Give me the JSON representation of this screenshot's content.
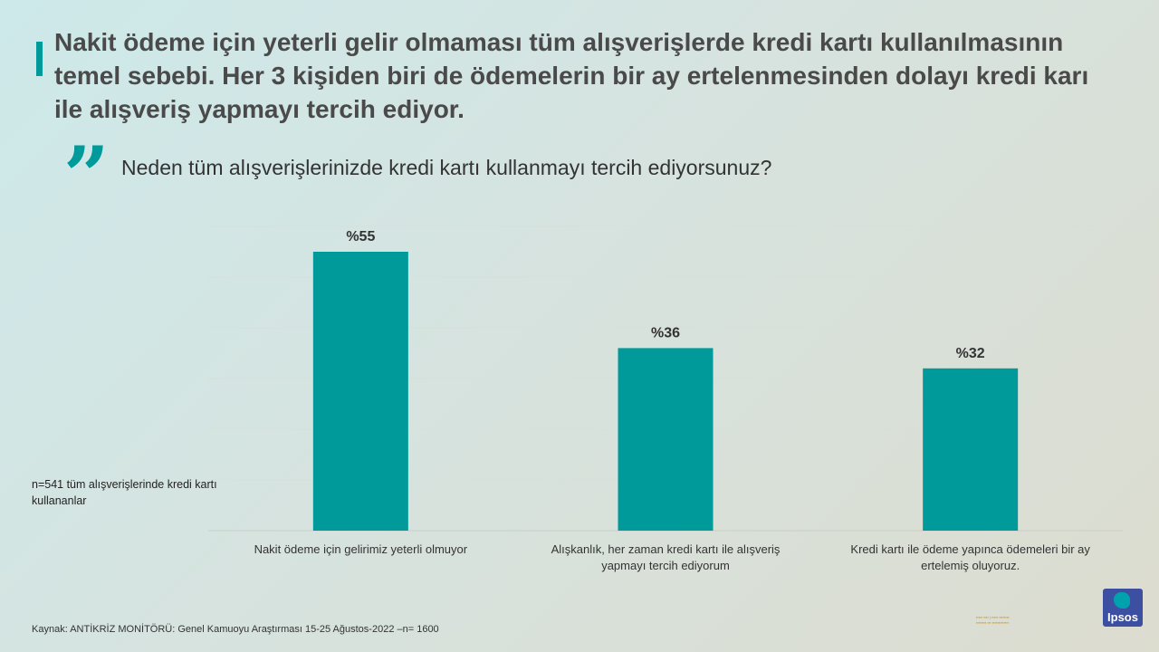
{
  "title": "Nakit ödeme için yeterli gelir olmaması tüm alışverişlerde kredi kartı kullanılmasının temel sebebi. Her 3 kişiden biri de ödemelerin bir ay ertelenmesinden dolayı kredi karı ile alışveriş yapmayı tercih ediyor.",
  "question": "Neden tüm alışverişlerinizde kredi kartı kullanmayı tercih ediyorsunuz?",
  "sample_note": "n=541 tüm alışverişlerinde kredi kartı kullananlar",
  "source": "Kaynak: ANTİKRİZ MONİTÖRÜ: Genel Kamuoyu Araştırması 15-25 Ağustos-2022 –n= 1600",
  "logo_text": "Ipsos",
  "colors": {
    "bar": "#009a9a",
    "accent": "#009a9a",
    "title": "#4a4a4a"
  },
  "chart_data": {
    "type": "bar",
    "categories": [
      "Nakit ödeme için gelirimiz yeterli olmuyor",
      "Alışkanlık, her zaman kredi kartı ile alışveriş yapmayı tercih ediyorum",
      "Kredi kartı ile ödeme yapınca ödemeleri bir ay ertelemiş oluyoruz."
    ],
    "category_lines": [
      [
        "Nakit ödeme için gelirimiz yeterli olmuyor"
      ],
      [
        "Alışkanlık, her zaman kredi kartı ile alışveriş",
        "yapmayı tercih ediyorum"
      ],
      [
        "Kredi kartı ile ödeme yapınca ödemeleri bir ay",
        "ertelemiş oluyoruz."
      ]
    ],
    "values": [
      55,
      36,
      32
    ],
    "value_labels": [
      "%55",
      "%36",
      "%32"
    ],
    "ylim": [
      0,
      60
    ],
    "grid": true,
    "legend": "none"
  }
}
